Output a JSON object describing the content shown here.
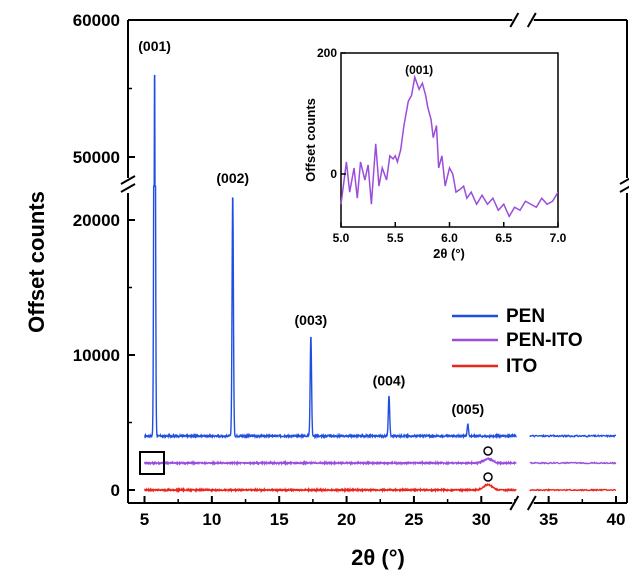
{
  "chart_data": [
    {
      "type": "line",
      "xlabel": "2θ (°)",
      "ylabel": "Offset counts",
      "xlim": [
        4,
        40.5
      ],
      "x_break": [
        32.6,
        33.6
      ],
      "y_break": [
        22500,
        48500
      ],
      "ylim": [
        -800,
        60000
      ],
      "x_ticks": [
        5,
        10,
        15,
        20,
        25,
        30,
        35,
        40
      ],
      "x_tick_labels": [
        "5",
        "10",
        "15",
        "20",
        "25",
        "30",
        "35",
        "40"
      ],
      "y_ticks": [
        0,
        10000,
        20000,
        50000,
        60000
      ],
      "y_tick_labels": [
        "0",
        "10000",
        "20000",
        "50000",
        "60000"
      ],
      "legend": {
        "position": "right",
        "entries": [
          "PEN",
          "PEN-ITO",
          "ITO"
        ]
      },
      "series": [
        {
          "name": "PEN",
          "color": "#1f4fe0",
          "baseline": 4000,
          "peaks": [
            {
              "x": 5.75,
              "y": 57000
            },
            {
              "x": 11.55,
              "y": 22000
            },
            {
              "x": 17.35,
              "y": 11500
            },
            {
              "x": 23.15,
              "y": 7000
            },
            {
              "x": 29.0,
              "y": 4900
            }
          ]
        },
        {
          "name": "PEN-ITO",
          "color": "#9a4ddb",
          "baseline": 2000,
          "peaks": [
            {
              "x": 30.5,
              "y": 2300
            }
          ]
        },
        {
          "name": "ITO",
          "color": "#e8261d",
          "baseline": 0,
          "peaks": [
            {
              "x": 30.5,
              "y": 400
            }
          ]
        }
      ],
      "peak_labels": [
        {
          "text": "(001)",
          "x": 5.75
        },
        {
          "text": "(002)",
          "x": 11.55
        },
        {
          "text": "(003)",
          "x": 17.35
        },
        {
          "text": "(004)",
          "x": 23.15
        },
        {
          "text": "(005)",
          "x": 29.0
        }
      ],
      "circle_markers": [
        {
          "series": "PEN-ITO",
          "x": 30.5
        },
        {
          "series": "ITO",
          "x": 30.5
        }
      ]
    },
    {
      "type": "line",
      "role": "inset",
      "xlabel": "2θ (°)",
      "ylabel": "Offset counts",
      "xlim": [
        5.0,
        7.0
      ],
      "ylim": [
        -100,
        200
      ],
      "x_ticks": [
        5.0,
        5.5,
        6.0,
        6.5,
        7.0
      ],
      "x_tick_labels": [
        "5.0",
        "5.5",
        "6.0",
        "6.5",
        "7.0"
      ],
      "y_ticks": [
        0,
        200
      ],
      "y_tick_labels": [
        "0",
        "200"
      ],
      "peak_label": {
        "text": "(001)",
        "x": 5.72
      },
      "series": [
        {
          "name": "PEN-ITO",
          "color": "#9a4ddb",
          "x": [
            5.0,
            5.05,
            5.08,
            5.12,
            5.15,
            5.18,
            5.22,
            5.25,
            5.28,
            5.32,
            5.35,
            5.38,
            5.42,
            5.45,
            5.48,
            5.5,
            5.52,
            5.55,
            5.58,
            5.62,
            5.65,
            5.68,
            5.7,
            5.72,
            5.75,
            5.78,
            5.8,
            5.83,
            5.85,
            5.88,
            5.9,
            5.93,
            5.96,
            6.0,
            6.03,
            6.06,
            6.1,
            6.13,
            6.16,
            6.2,
            6.25,
            6.3,
            6.35,
            6.4,
            6.45,
            6.5,
            6.55,
            6.6,
            6.65,
            6.7,
            6.75,
            6.8,
            6.85,
            6.9,
            6.95,
            7.0
          ],
          "y": [
            -50,
            20,
            -30,
            10,
            -40,
            20,
            -10,
            15,
            -50,
            50,
            -20,
            10,
            -10,
            30,
            25,
            30,
            20,
            40,
            80,
            120,
            130,
            160,
            150,
            140,
            150,
            130,
            110,
            90,
            60,
            80,
            10,
            30,
            -20,
            10,
            0,
            -30,
            -25,
            -20,
            -40,
            -30,
            -50,
            -35,
            -50,
            -40,
            -60,
            -50,
            -70,
            -55,
            -60,
            -45,
            -50,
            -55,
            -40,
            -50,
            -45,
            -30
          ]
        }
      ]
    }
  ]
}
